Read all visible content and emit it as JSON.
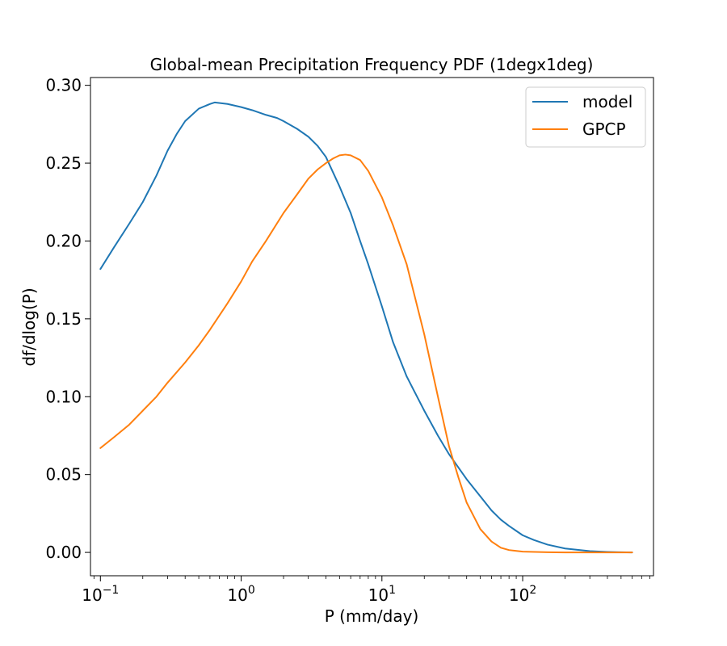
{
  "chart_data": {
    "type": "line",
    "title": "Global-mean Precipitation Frequency PDF (1degx1deg)",
    "xlabel": "P (mm/day)",
    "ylabel": "df/dlog(P)",
    "xscale": "log",
    "xlim": [
      0.085,
      850
    ],
    "ylim": [
      -0.015,
      0.305
    ],
    "xticks": [
      {
        "value": 0.1,
        "base": "10",
        "exp": "−1"
      },
      {
        "value": 1,
        "base": "10",
        "exp": "0"
      },
      {
        "value": 10,
        "base": "10",
        "exp": "1"
      },
      {
        "value": 100,
        "base": "10",
        "exp": "2"
      }
    ],
    "yticks": [
      {
        "value": 0.0,
        "label": "0.00"
      },
      {
        "value": 0.05,
        "label": "0.05"
      },
      {
        "value": 0.1,
        "label": "0.10"
      },
      {
        "value": 0.15,
        "label": "0.15"
      },
      {
        "value": 0.2,
        "label": "0.20"
      },
      {
        "value": 0.25,
        "label": "0.25"
      },
      {
        "value": 0.3,
        "label": "0.30"
      }
    ],
    "legend_position": "top-right",
    "series": [
      {
        "name": "model",
        "color": "#1f77b4",
        "x": [
          0.1,
          0.125,
          0.16,
          0.2,
          0.25,
          0.3,
          0.35,
          0.4,
          0.5,
          0.6,
          0.65,
          0.8,
          1.0,
          1.2,
          1.5,
          1.8,
          2.0,
          2.5,
          3.0,
          3.5,
          4.0,
          5.0,
          6.0,
          7.0,
          8.0,
          10,
          12,
          15,
          20,
          25,
          30,
          40,
          50,
          60,
          70,
          80,
          100,
          120,
          150,
          200,
          300,
          400,
          500,
          600
        ],
        "y": [
          0.182,
          0.196,
          0.211,
          0.225,
          0.242,
          0.258,
          0.269,
          0.277,
          0.285,
          0.288,
          0.289,
          0.288,
          0.286,
          0.284,
          0.281,
          0.279,
          0.277,
          0.272,
          0.267,
          0.261,
          0.254,
          0.235,
          0.218,
          0.2,
          0.185,
          0.158,
          0.135,
          0.113,
          0.091,
          0.075,
          0.063,
          0.047,
          0.036,
          0.027,
          0.021,
          0.017,
          0.011,
          0.008,
          0.005,
          0.0025,
          0.0008,
          0.0003,
          0.0001,
          0.0
        ]
      },
      {
        "name": "GPCP",
        "color": "#ff7f0e",
        "x": [
          0.1,
          0.125,
          0.16,
          0.2,
          0.25,
          0.3,
          0.4,
          0.5,
          0.6,
          0.8,
          1.0,
          1.2,
          1.5,
          2.0,
          2.5,
          3.0,
          3.5,
          4.0,
          4.5,
          5.0,
          5.5,
          6.0,
          7.0,
          8.0,
          10,
          12,
          15,
          20,
          25,
          30,
          35,
          40,
          50,
          60,
          70,
          80,
          100,
          150,
          200,
          300,
          600
        ],
        "y": [
          0.067,
          0.074,
          0.082,
          0.091,
          0.1,
          0.109,
          0.122,
          0.133,
          0.143,
          0.16,
          0.174,
          0.187,
          0.2,
          0.218,
          0.23,
          0.24,
          0.246,
          0.25,
          0.253,
          0.255,
          0.2555,
          0.255,
          0.252,
          0.245,
          0.228,
          0.21,
          0.185,
          0.14,
          0.1,
          0.068,
          0.048,
          0.032,
          0.015,
          0.007,
          0.003,
          0.0015,
          0.0005,
          0.0001,
          0.0,
          0.0,
          0.0
        ]
      }
    ]
  }
}
